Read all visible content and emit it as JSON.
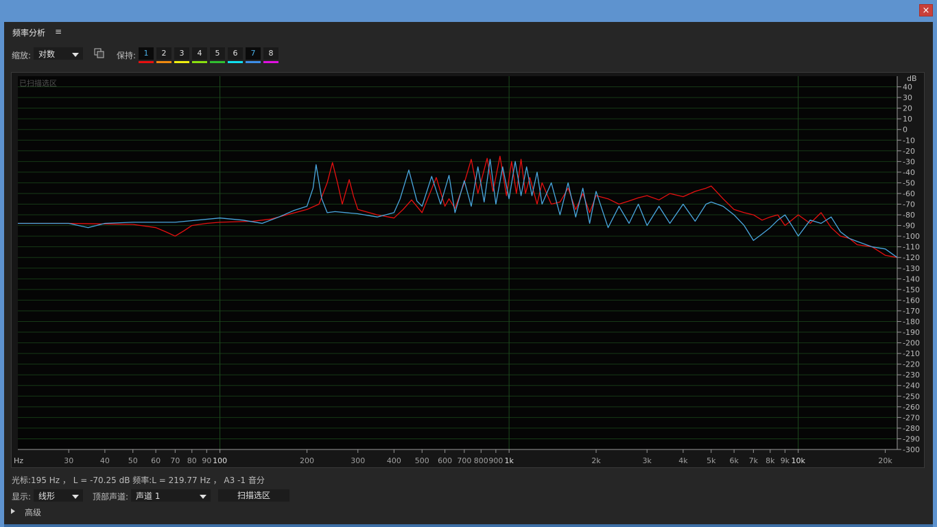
{
  "window": {
    "close_label": "×"
  },
  "panel": {
    "title": "频率分析",
    "menu_glyph": "≡"
  },
  "toolbar": {
    "zoom_label": "缩放:",
    "zoom_value": "对数",
    "copy_icon": "copy-icon",
    "hold_label": "保持:",
    "hold_slots": [
      {
        "label": "1",
        "color": "#e81010",
        "selected": true
      },
      {
        "label": "2",
        "color": "#f08a10",
        "selected": false
      },
      {
        "label": "3",
        "color": "#f0f010",
        "selected": false
      },
      {
        "label": "4",
        "color": "#8ae010",
        "selected": false
      },
      {
        "label": "5",
        "color": "#30c030",
        "selected": false
      },
      {
        "label": "6",
        "color": "#10e0f0",
        "selected": false
      },
      {
        "label": "7",
        "color": "#3d8ee8",
        "selected": true
      },
      {
        "label": "8",
        "color": "#e010e0",
        "selected": false
      }
    ]
  },
  "plot": {
    "sweep_label": "已扫描选区"
  },
  "chart_data": {
    "type": "line",
    "xscale": "log",
    "xlim": [
      20,
      22000
    ],
    "ylim": [
      -300,
      50
    ],
    "xlabel": "Hz",
    "ylabel": "dB",
    "x_ticks": [
      {
        "value": 30,
        "label": "30"
      },
      {
        "value": 40,
        "label": "40"
      },
      {
        "value": 50,
        "label": "50"
      },
      {
        "value": 60,
        "label": "60"
      },
      {
        "value": 70,
        "label": "70"
      },
      {
        "value": 80,
        "label": "80"
      },
      {
        "value": 90,
        "label": "90"
      },
      {
        "value": 100,
        "label": "100"
      },
      {
        "value": 200,
        "label": "200"
      },
      {
        "value": 300,
        "label": "300"
      },
      {
        "value": 400,
        "label": "400"
      },
      {
        "value": 500,
        "label": "500"
      },
      {
        "value": 600,
        "label": "600"
      },
      {
        "value": 700,
        "label": "700"
      },
      {
        "value": 800,
        "label": "800"
      },
      {
        "value": 900,
        "label": "900"
      },
      {
        "value": 1000,
        "label": "1k"
      },
      {
        "value": 2000,
        "label": "2k"
      },
      {
        "value": 3000,
        "label": "3k"
      },
      {
        "value": 4000,
        "label": "4k"
      },
      {
        "value": 5000,
        "label": "5k"
      },
      {
        "value": 6000,
        "label": "6k"
      },
      {
        "value": 7000,
        "label": "7k"
      },
      {
        "value": 8000,
        "label": "8k"
      },
      {
        "value": 9000,
        "label": "9k"
      },
      {
        "value": 10000,
        "label": "10k"
      },
      {
        "value": 20000,
        "label": "20k"
      }
    ],
    "y_ticks": [
      40,
      30,
      20,
      10,
      0,
      -10,
      -20,
      -30,
      -40,
      -50,
      -60,
      -70,
      -80,
      -90,
      -100,
      -110,
      -120,
      -130,
      -140,
      -150,
      -160,
      -170,
      -180,
      -190,
      -200,
      -210,
      -220,
      -230,
      -240,
      -250,
      -260,
      -270,
      -280,
      -290,
      -300
    ],
    "series": [
      {
        "color": "#e81010",
        "x": [
          20,
          30,
          50,
          60,
          65,
          70,
          75,
          80,
          90,
          100,
          130,
          150,
          170,
          200,
          220,
          235,
          245,
          255,
          265,
          280,
          290,
          300,
          350,
          400,
          430,
          460,
          500,
          560,
          600,
          620,
          650,
          700,
          740,
          780,
          840,
          880,
          930,
          980,
          1020,
          1060,
          1100,
          1140,
          1180,
          1250,
          1300,
          1400,
          1500,
          1600,
          1700,
          1800,
          1900,
          2000,
          2200,
          2400,
          2600,
          2800,
          3000,
          3300,
          3600,
          4000,
          4400,
          4800,
          5000,
          5500,
          6000,
          6500,
          7000,
          7500,
          8000,
          8500,
          9000,
          9500,
          10000,
          11000,
          12000,
          13000,
          14000,
          15000,
          16000,
          18000,
          20000,
          22000
        ],
        "y": [
          -88,
          -88,
          -89,
          -92,
          -96,
          -100,
          -95,
          -90,
          -88,
          -87,
          -86,
          -84,
          -80,
          -75,
          -70,
          -50,
          -31,
          -50,
          -70,
          -47,
          -63,
          -75,
          -80,
          -83,
          -75,
          -66,
          -78,
          -45,
          -72,
          -65,
          -74,
          -50,
          -28,
          -60,
          -27,
          -58,
          -25,
          -62,
          -30,
          -60,
          -28,
          -60,
          -45,
          -70,
          -50,
          -70,
          -68,
          -55,
          -75,
          -60,
          -78,
          -62,
          -65,
          -70,
          -67,
          -64,
          -62,
          -66,
          -60,
          -63,
          -58,
          -55,
          -53,
          -65,
          -75,
          -78,
          -80,
          -85,
          -82,
          -80,
          -90,
          -85,
          -80,
          -88,
          -78,
          -92,
          -100,
          -102,
          -108,
          -110,
          -118,
          -120
        ]
      },
      {
        "color": "#4aa8e0",
        "x": [
          20,
          30,
          35,
          40,
          50,
          70,
          100,
          120,
          140,
          160,
          180,
          200,
          210,
          215,
          225,
          235,
          250,
          300,
          350,
          400,
          420,
          450,
          480,
          500,
          540,
          580,
          620,
          650,
          700,
          740,
          780,
          820,
          860,
          900,
          950,
          1000,
          1050,
          1100,
          1150,
          1200,
          1250,
          1300,
          1400,
          1500,
          1600,
          1700,
          1800,
          1900,
          2000,
          2200,
          2400,
          2600,
          2800,
          3000,
          3300,
          3600,
          4000,
          4400,
          4800,
          5000,
          5500,
          6000,
          6500,
          7000,
          7500,
          8000,
          8500,
          9000,
          9500,
          10000,
          11000,
          12000,
          13000,
          14000,
          15000,
          16000,
          18000,
          20000,
          22000
        ],
        "y": [
          -88,
          -88,
          -92,
          -88,
          -87,
          -87,
          -83,
          -85,
          -88,
          -82,
          -76,
          -72,
          -55,
          -33,
          -65,
          -78,
          -77,
          -79,
          -82,
          -78,
          -65,
          -38,
          -67,
          -72,
          -44,
          -70,
          -43,
          -78,
          -48,
          -72,
          -35,
          -68,
          -28,
          -70,
          -35,
          -65,
          -30,
          -62,
          -35,
          -62,
          -40,
          -70,
          -50,
          -80,
          -50,
          -82,
          -55,
          -88,
          -58,
          -92,
          -72,
          -88,
          -70,
          -90,
          -72,
          -88,
          -70,
          -86,
          -70,
          -68,
          -72,
          -80,
          -90,
          -104,
          -98,
          -92,
          -85,
          -80,
          -90,
          -100,
          -85,
          -88,
          -82,
          -96,
          -102,
          -105,
          -110,
          -112,
          -120
        ]
      }
    ]
  },
  "status": {
    "cursor_text": "光标:195 Hz ， L = -70.25 dB   频率:L = 219.77 Hz ， A3 -1 音分"
  },
  "controls": {
    "display_label": "显示:",
    "display_value": "线形",
    "top_channel_label": "顶部声道:",
    "top_channel_value": "声道 1",
    "scan_button": "扫描选区",
    "advanced_label": "高级"
  }
}
